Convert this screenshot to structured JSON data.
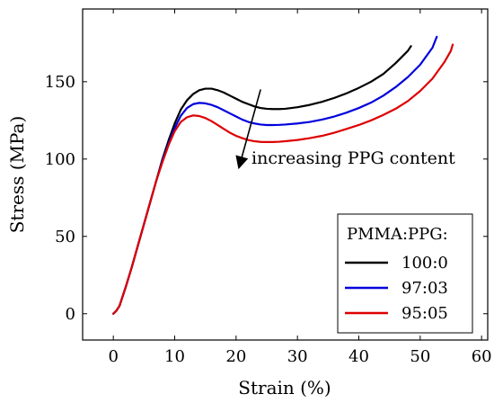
{
  "chart_data": {
    "type": "line",
    "title": "",
    "xlabel": "Strain (%)",
    "ylabel": "Stress (MPa)",
    "xlim": [
      -5,
      61
    ],
    "ylim": [
      -17,
      197
    ],
    "xticks": [
      0,
      10,
      20,
      30,
      40,
      50,
      60
    ],
    "yticks": [
      0,
      50,
      100,
      150
    ],
    "grid": false,
    "legend": {
      "title": "PMMA:PPG:",
      "placement": "bottom-right"
    },
    "annotation": {
      "text": "increasing PPG content",
      "arrow_from": [
        24,
        145
      ],
      "arrow_to": [
        20.5,
        95
      ]
    },
    "series": [
      {
        "name": "100:0",
        "color": "#000000",
        "points": [
          [
            0,
            0
          ],
          [
            0.5,
            2
          ],
          [
            1,
            5
          ],
          [
            2,
            17
          ],
          [
            3,
            30
          ],
          [
            4,
            44
          ],
          [
            5,
            58
          ],
          [
            6,
            72
          ],
          [
            7,
            86
          ],
          [
            8,
            100
          ],
          [
            9,
            112
          ],
          [
            10,
            123
          ],
          [
            11,
            132
          ],
          [
            12,
            138
          ],
          [
            13,
            142
          ],
          [
            14,
            144.5
          ],
          [
            15,
            145.5
          ],
          [
            16,
            145.5
          ],
          [
            17,
            144.5
          ],
          [
            18,
            143
          ],
          [
            19,
            141
          ],
          [
            20,
            139
          ],
          [
            21,
            137
          ],
          [
            22,
            135.5
          ],
          [
            23,
            134
          ],
          [
            24,
            133
          ],
          [
            25,
            132.5
          ],
          [
            26,
            132.3
          ],
          [
            27,
            132.3
          ],
          [
            28,
            132.5
          ],
          [
            30,
            133.5
          ],
          [
            32,
            135
          ],
          [
            34,
            137
          ],
          [
            36,
            139.5
          ],
          [
            38,
            142.5
          ],
          [
            40,
            146
          ],
          [
            42,
            150
          ],
          [
            44,
            155
          ],
          [
            46,
            162
          ],
          [
            48,
            170
          ],
          [
            48.5,
            173
          ]
        ]
      },
      {
        "name": "97:03",
        "color": "#0000dd",
        "points": [
          [
            0,
            0
          ],
          [
            0.5,
            2
          ],
          [
            1,
            5
          ],
          [
            2,
            17
          ],
          [
            3,
            30
          ],
          [
            4,
            44
          ],
          [
            5,
            58
          ],
          [
            6,
            72
          ],
          [
            7,
            86
          ],
          [
            8,
            99
          ],
          [
            9,
            110
          ],
          [
            10,
            120
          ],
          [
            11,
            128
          ],
          [
            12,
            133
          ],
          [
            13,
            135.5
          ],
          [
            14,
            136.3
          ],
          [
            15,
            136
          ],
          [
            16,
            135
          ],
          [
            17,
            133.5
          ],
          [
            18,
            131.5
          ],
          [
            19,
            129.5
          ],
          [
            20,
            127.5
          ],
          [
            21,
            125.5
          ],
          [
            22,
            124
          ],
          [
            23,
            123
          ],
          [
            24,
            122.3
          ],
          [
            25,
            122
          ],
          [
            26,
            122
          ],
          [
            27,
            122.1
          ],
          [
            28,
            122.3
          ],
          [
            30,
            123
          ],
          [
            32,
            124
          ],
          [
            34,
            125.5
          ],
          [
            36,
            127.5
          ],
          [
            38,
            130
          ],
          [
            40,
            133
          ],
          [
            42,
            136.5
          ],
          [
            44,
            141
          ],
          [
            46,
            146.5
          ],
          [
            48,
            153
          ],
          [
            50,
            161
          ],
          [
            52,
            172
          ],
          [
            52.7,
            179
          ]
        ]
      },
      {
        "name": "95:05",
        "color": "#dd0000",
        "points": [
          [
            0,
            0
          ],
          [
            0.5,
            2
          ],
          [
            1,
            5
          ],
          [
            2,
            17
          ],
          [
            3,
            30
          ],
          [
            4,
            44
          ],
          [
            5,
            58
          ],
          [
            6,
            72
          ],
          [
            7,
            86
          ],
          [
            8,
            98
          ],
          [
            9,
            109
          ],
          [
            10,
            118
          ],
          [
            11,
            124
          ],
          [
            12,
            127
          ],
          [
            13,
            128.2
          ],
          [
            14,
            127.8
          ],
          [
            15,
            126.5
          ],
          [
            16,
            124.5
          ],
          [
            17,
            122
          ],
          [
            18,
            119.5
          ],
          [
            19,
            117
          ],
          [
            20,
            115
          ],
          [
            21,
            113.5
          ],
          [
            22,
            112.3
          ],
          [
            23,
            111.5
          ],
          [
            24,
            111.1
          ],
          [
            25,
            111
          ],
          [
            26,
            111
          ],
          [
            27,
            111.2
          ],
          [
            28,
            111.5
          ],
          [
            30,
            112.3
          ],
          [
            32,
            113.5
          ],
          [
            34,
            115
          ],
          [
            36,
            117
          ],
          [
            38,
            119.5
          ],
          [
            40,
            122
          ],
          [
            42,
            125
          ],
          [
            44,
            128.5
          ],
          [
            46,
            132.5
          ],
          [
            48,
            137.5
          ],
          [
            50,
            144
          ],
          [
            52,
            152
          ],
          [
            54,
            163
          ],
          [
            55,
            170
          ],
          [
            55.3,
            174
          ]
        ]
      }
    ]
  }
}
